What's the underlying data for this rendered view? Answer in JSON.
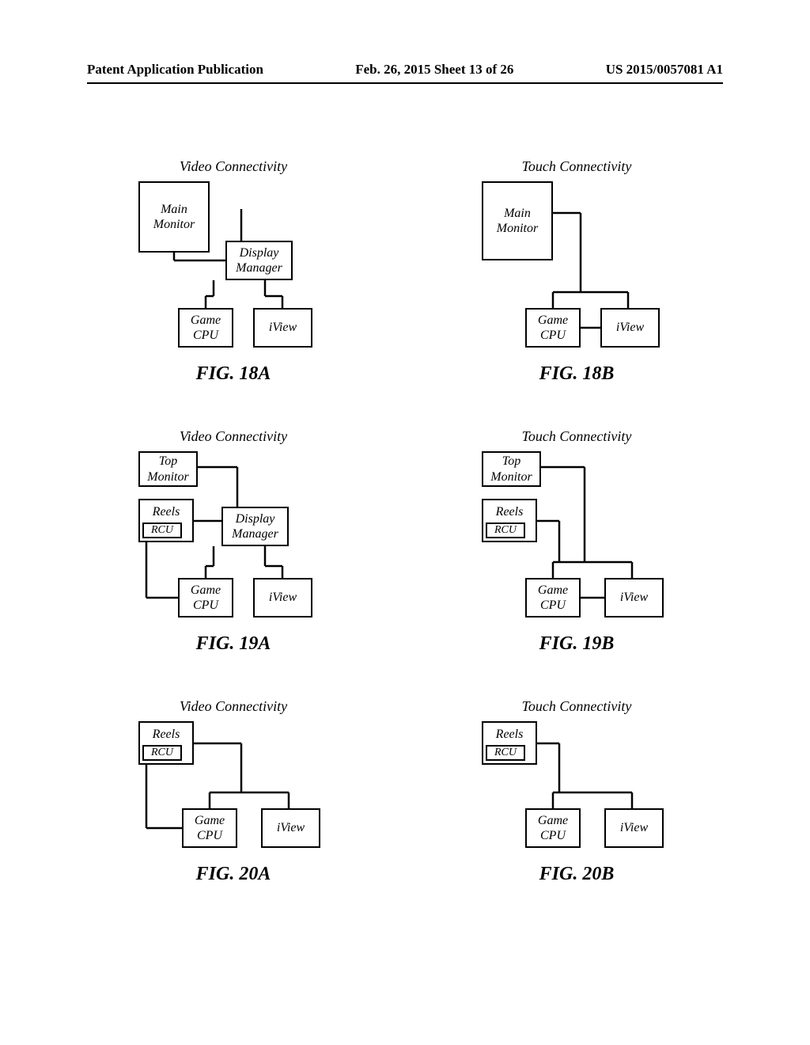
{
  "header": {
    "left": "Patent Application Publication",
    "center": "Feb. 26, 2015  Sheet 13 of 26",
    "right": "US 2015/0057081 A1"
  },
  "figures": {
    "f18a": {
      "title": "Video Connectivity",
      "caption": "FIG. 18A",
      "boxes": {
        "main_monitor": "Main\nMonitor",
        "display_manager": "Display\nManager",
        "game_cpu": "Game\nCPU",
        "iview": "iView"
      }
    },
    "f18b": {
      "title": "Touch Connectivity",
      "caption": "FIG. 18B",
      "boxes": {
        "main_monitor": "Main\nMonitor",
        "game_cpu": "Game\nCPU",
        "iview": "iView"
      }
    },
    "f19a": {
      "title": "Video Connectivity",
      "caption": "FIG. 19A",
      "boxes": {
        "top_monitor": "Top\nMonitor",
        "reels": "Reels",
        "rcu": "RCU",
        "display_manager": "Display\nManager",
        "game_cpu": "Game\nCPU",
        "iview": "iView"
      }
    },
    "f19b": {
      "title": "Touch Connectivity",
      "caption": "FIG. 19B",
      "boxes": {
        "top_monitor": "Top\nMonitor",
        "reels": "Reels",
        "rcu": "RCU",
        "game_cpu": "Game\nCPU",
        "iview": "iView"
      }
    },
    "f20a": {
      "title": "Video Connectivity",
      "caption": "FIG. 20A",
      "boxes": {
        "reels": "Reels",
        "rcu": "RCU",
        "game_cpu": "Game\nCPU",
        "iview": "iView"
      }
    },
    "f20b": {
      "title": "Touch Connectivity",
      "caption": "FIG. 20B",
      "boxes": {
        "reels": "Reels",
        "rcu": "RCU",
        "game_cpu": "Game\nCPU",
        "iview": "iView"
      }
    }
  },
  "style": {
    "background_color": "#ffffff",
    "line_color": "#000000",
    "box_border_width": 2.5,
    "title_fontsize": 18,
    "caption_fontsize": 24,
    "box_fontsize": 16
  }
}
